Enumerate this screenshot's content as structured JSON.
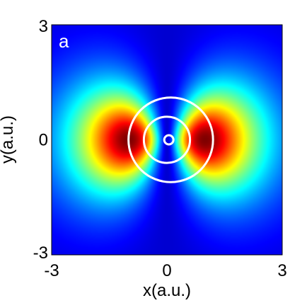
{
  "chart_data": {
    "type": "heatmap",
    "panel_label": "a",
    "xlabel": "x(a.u.)",
    "ylabel": "y(a.u.)",
    "xlim": [
      -3,
      3
    ],
    "ylim": [
      -3,
      3
    ],
    "x_ticks": [
      "-3",
      "0",
      "3"
    ],
    "y_ticks": [
      "-3",
      "0",
      "3"
    ],
    "colormap": "jet",
    "grid": false,
    "density_lobes": [
      {
        "center": [
          -1.0,
          0.0
        ],
        "peak": 1.0
      },
      {
        "center": [
          1.0,
          0.0
        ],
        "peak": 1.0
      }
    ],
    "overlay_curves": [
      {
        "type": "circle",
        "center": [
          0.1,
          0.0
        ],
        "radius": 1.1,
        "color": "#ffffff"
      },
      {
        "type": "circle",
        "center": [
          0.0,
          0.0
        ],
        "radius": 0.6,
        "color": "#ffffff"
      },
      {
        "type": "loop",
        "center": [
          0.05,
          0.0
        ],
        "radius": 0.12,
        "color": "#ffffff"
      }
    ]
  }
}
